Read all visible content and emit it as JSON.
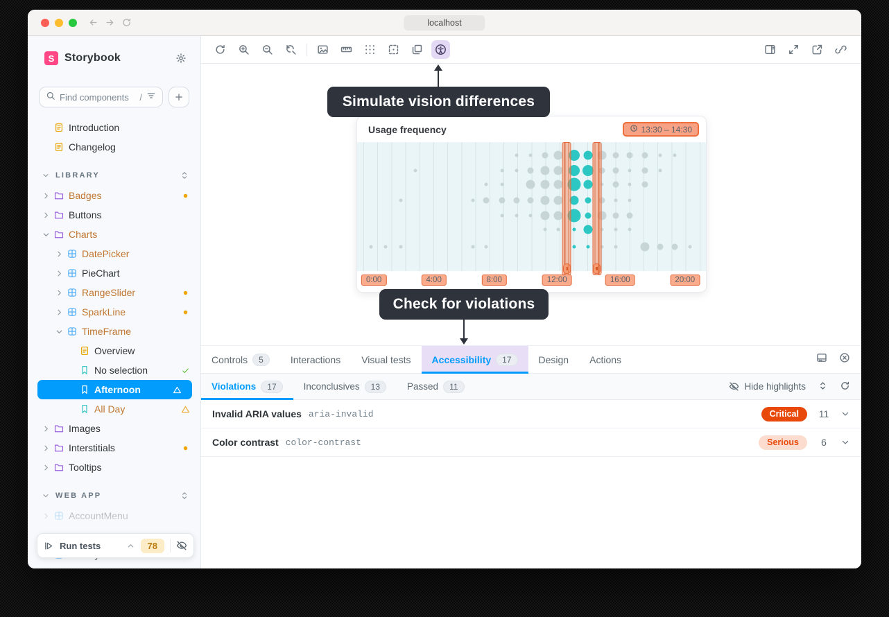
{
  "window": {
    "title": "localhost"
  },
  "titlebar": {
    "nav_icons": [
      "back",
      "forward",
      "reload"
    ]
  },
  "sidebar": {
    "brand": "Storybook",
    "search": {
      "placeholder": "Find components",
      "shortcut": "/",
      "filter_icon": "filter"
    },
    "create_button_icon": "plus",
    "tree": [
      {
        "kind": "doc",
        "label": "Introduction",
        "depth": 0
      },
      {
        "kind": "doc",
        "label": "Changelog",
        "depth": 0
      },
      {
        "kind": "section",
        "label": "LIBRARY"
      },
      {
        "kind": "folder",
        "label": "Badges",
        "depth": 0,
        "expanded": false,
        "accent": true,
        "trail": "dot"
      },
      {
        "kind": "folder",
        "label": "Buttons",
        "depth": 0,
        "expanded": false
      },
      {
        "kind": "folder",
        "label": "Charts",
        "depth": 0,
        "expanded": true,
        "accent": true
      },
      {
        "kind": "component",
        "label": "DatePicker",
        "depth": 1,
        "expanded": false,
        "accent": true
      },
      {
        "kind": "component",
        "label": "PieChart",
        "depth": 1,
        "expanded": false
      },
      {
        "kind": "component",
        "label": "RangeSlider",
        "depth": 1,
        "expanded": false,
        "accent": true,
        "trail": "dot"
      },
      {
        "kind": "component",
        "label": "SparkLine",
        "depth": 1,
        "expanded": false,
        "accent": true,
        "trail": "dot"
      },
      {
        "kind": "component",
        "label": "TimeFrame",
        "depth": 1,
        "expanded": true,
        "accent": true
      },
      {
        "kind": "doc",
        "label": "Overview",
        "depth": 2
      },
      {
        "kind": "story",
        "label": "No selection",
        "depth": 2,
        "trail": "check"
      },
      {
        "kind": "story",
        "label": "Afternoon",
        "depth": 2,
        "selected": true,
        "trail": "warn"
      },
      {
        "kind": "story",
        "label": "All Day",
        "depth": 2,
        "accent": true,
        "trail": "warn"
      },
      {
        "kind": "folder",
        "label": "Images",
        "depth": 0,
        "expanded": false
      },
      {
        "kind": "folder",
        "label": "Interstitials",
        "depth": 0,
        "expanded": false,
        "trail": "dot"
      },
      {
        "kind": "folder",
        "label": "Tooltips",
        "depth": 0,
        "expanded": false
      },
      {
        "kind": "section",
        "label": "WEB APP"
      },
      {
        "kind": "component",
        "label": "AccountMenu",
        "depth": 0,
        "expanded": false,
        "faded": true
      },
      {
        "kind": "spacer"
      },
      {
        "kind": "component",
        "label": "ActivityList",
        "depth": 0,
        "expanded": false
      }
    ],
    "run_tests": {
      "label": "Run tests",
      "count": "78"
    }
  },
  "toolbar": {
    "left": [
      "remount",
      "zoom-in",
      "zoom-out",
      "zoom-reset",
      "separator",
      "backgrounds",
      "ruler",
      "grid",
      "outline",
      "layers",
      "accessibility"
    ],
    "active": "accessibility",
    "right": [
      "panel",
      "fullscreen",
      "new-tab",
      "link"
    ]
  },
  "tooltips": {
    "vision": "Simulate vision differences",
    "violations": "Check for violations"
  },
  "chart_data": {
    "type": "scatter",
    "title": "Usage frequency",
    "time_badge": "13:30 – 14:30",
    "x_ticks": [
      {
        "label": "0:00",
        "pos": 4.8
      },
      {
        "label": "4:00",
        "pos": 22
      },
      {
        "label": "8:00",
        "pos": 39.3
      },
      {
        "label": "12:00",
        "pos": 57.3
      },
      {
        "label": "16:00",
        "pos": 75.4
      },
      {
        "label": "20:00",
        "pos": 94
      }
    ],
    "selection": {
      "start": "13:30",
      "end": "14:30",
      "handle_positions": [
        60.1,
        68.75
      ]
    },
    "colors": {
      "dot": "#c8d5d7",
      "dot_selected": "#2cc7c3",
      "highlight": "#e4683a",
      "plot_bg": "#e9f5f7"
    },
    "dots": [
      [
        45.8,
        10,
        2.5,
        0
      ],
      [
        49.8,
        10,
        2.5,
        0
      ],
      [
        53.8,
        10,
        4.5,
        0
      ],
      [
        57.7,
        10,
        6.5,
        0
      ],
      [
        62.3,
        10,
        8,
        1
      ],
      [
        66.3,
        10,
        6.5,
        1
      ],
      [
        70.2,
        10,
        6.5,
        0
      ],
      [
        74.2,
        10,
        4.5,
        0
      ],
      [
        78.2,
        10,
        4.5,
        0
      ],
      [
        82.5,
        10,
        4.5,
        0
      ],
      [
        86.9,
        10,
        2.5,
        0
      ],
      [
        91.1,
        10,
        2.5,
        0
      ],
      [
        16.7,
        22,
        2.5,
        0
      ],
      [
        41.5,
        22,
        2.5,
        0
      ],
      [
        45.8,
        22,
        2.5,
        0
      ],
      [
        49.8,
        22,
        4.5,
        0
      ],
      [
        53.8,
        22,
        6.5,
        0
      ],
      [
        57.7,
        22,
        6.5,
        0
      ],
      [
        62.3,
        22,
        8,
        1
      ],
      [
        66.3,
        22,
        8,
        1
      ],
      [
        70.2,
        22,
        4.5,
        0
      ],
      [
        74.2,
        22,
        4.5,
        0
      ],
      [
        78.2,
        22,
        2.5,
        0
      ],
      [
        82.5,
        22,
        4.5,
        0
      ],
      [
        86.9,
        22,
        2.5,
        0
      ],
      [
        37,
        33,
        2.5,
        0
      ],
      [
        41.5,
        33,
        2.5,
        0
      ],
      [
        49.8,
        33,
        6.5,
        0
      ],
      [
        53.8,
        33,
        6.5,
        0
      ],
      [
        57.7,
        33,
        6.5,
        0
      ],
      [
        62.3,
        33,
        9.5,
        1
      ],
      [
        66.3,
        33,
        6.5,
        1
      ],
      [
        70.2,
        33,
        2.5,
        0
      ],
      [
        74.2,
        33,
        4.5,
        0
      ],
      [
        78.2,
        33,
        2.5,
        0
      ],
      [
        82.5,
        33,
        4.5,
        0
      ],
      [
        12.5,
        45,
        2.5,
        0
      ],
      [
        33.3,
        45,
        2.5,
        0
      ],
      [
        37,
        45,
        4.5,
        0
      ],
      [
        41.5,
        45,
        4.5,
        0
      ],
      [
        45.8,
        45,
        4.5,
        0
      ],
      [
        49.8,
        45,
        4.5,
        0
      ],
      [
        53.8,
        45,
        6.5,
        0
      ],
      [
        57.7,
        45,
        6.5,
        0
      ],
      [
        62.3,
        45,
        6.5,
        1
      ],
      [
        66.3,
        45,
        4.5,
        1
      ],
      [
        70.2,
        45,
        4.5,
        0
      ],
      [
        74.2,
        45,
        2.5,
        0
      ],
      [
        78.2,
        45,
        2.5,
        0
      ],
      [
        41.5,
        57,
        2.5,
        0
      ],
      [
        45.8,
        57,
        2.5,
        0
      ],
      [
        49.8,
        57,
        2.5,
        0
      ],
      [
        53.8,
        57,
        6.5,
        0
      ],
      [
        57.7,
        57,
        6.5,
        0
      ],
      [
        62.3,
        57,
        9.5,
        1
      ],
      [
        66.3,
        57,
        4.5,
        1
      ],
      [
        70.2,
        57,
        6.5,
        0
      ],
      [
        74.2,
        57,
        4.5,
        0
      ],
      [
        78.2,
        57,
        4.5,
        0
      ],
      [
        53.8,
        68,
        2.5,
        0
      ],
      [
        57.7,
        68,
        2.5,
        0
      ],
      [
        62.3,
        68,
        2.5,
        1
      ],
      [
        66.3,
        68,
        6.5,
        1
      ],
      [
        70.2,
        68,
        2.5,
        0
      ],
      [
        74.2,
        68,
        2.5,
        0
      ],
      [
        78.2,
        68,
        2.5,
        0
      ],
      [
        4,
        81,
        2.5,
        0
      ],
      [
        8.2,
        81,
        2.5,
        0
      ],
      [
        12.5,
        81,
        2.5,
        0
      ],
      [
        33.3,
        81,
        2.5,
        0
      ],
      [
        37,
        81,
        2.5,
        0
      ],
      [
        62.3,
        81,
        2.5,
        1
      ],
      [
        66.3,
        81,
        2.5,
        1
      ],
      [
        70.2,
        81,
        2.5,
        0
      ],
      [
        74.2,
        81,
        2.5,
        0
      ],
      [
        82.5,
        81,
        6.5,
        0
      ],
      [
        86.9,
        81,
        4.5,
        0
      ],
      [
        91.1,
        81,
        4.5,
        0
      ],
      [
        95.4,
        81,
        2.5,
        0
      ]
    ]
  },
  "panel": {
    "tabs": [
      {
        "label": "Controls",
        "count": "5"
      },
      {
        "label": "Interactions"
      },
      {
        "label": "Visual tests"
      },
      {
        "label": "Accessibility",
        "count": "17",
        "active": true,
        "highlight": true
      },
      {
        "label": "Design"
      },
      {
        "label": "Actions"
      }
    ],
    "tab_icons": [
      "bottom-panel",
      "close-circle"
    ],
    "subtabs": [
      {
        "label": "Violations",
        "count": "17",
        "active": true
      },
      {
        "label": "Inconclusives",
        "count": "13"
      },
      {
        "label": "Passed",
        "count": "11"
      }
    ],
    "hide_highlights": "Hide highlights",
    "subtab_icons": [
      "updown",
      "refresh"
    ],
    "rows": [
      {
        "title": "Invalid ARIA values",
        "code": "aria-invalid",
        "severity": "Critical",
        "level": "critical",
        "count": "11"
      },
      {
        "title": "Color contrast",
        "code": "color-contrast",
        "severity": "Serious",
        "level": "serious",
        "count": "6"
      }
    ]
  }
}
